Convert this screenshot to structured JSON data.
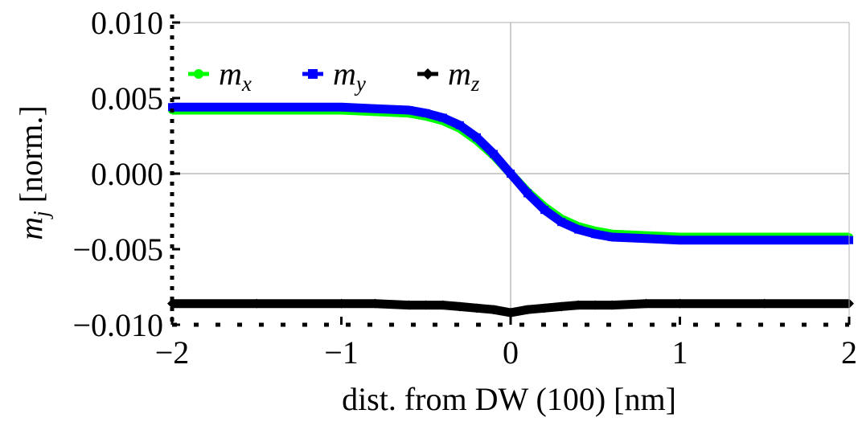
{
  "chart_data": {
    "type": "line",
    "title": "",
    "xlabel": "dist. from DW (100) [nm]",
    "ylabel": {
      "main": "m",
      "sub": "j",
      "suffix": " [norm.]"
    },
    "xlim": [
      -2,
      2
    ],
    "ylim": [
      -0.01,
      0.01
    ],
    "xticks": [
      {
        "value": -2,
        "label": "−2"
      },
      {
        "value": -1,
        "label": "−1"
      },
      {
        "value": 0,
        "label": "0"
      },
      {
        "value": 1,
        "label": "1"
      },
      {
        "value": 2,
        "label": "2"
      }
    ],
    "yticks": [
      {
        "value": 0.01,
        "label": "0.010"
      },
      {
        "value": 0.005,
        "label": "0.005"
      },
      {
        "value": 0,
        "label": "0.000"
      },
      {
        "value": -0.005,
        "label": "−0.005"
      },
      {
        "value": -0.01,
        "label": "−0.010"
      }
    ],
    "grid": "zero-lines",
    "legend_position": "top-left",
    "x": [
      -2.0,
      -1.5,
      -1.0,
      -0.8,
      -0.6,
      -0.5,
      -0.4,
      -0.3,
      -0.2,
      -0.1,
      0.0,
      0.1,
      0.2,
      0.3,
      0.4,
      0.5,
      0.6,
      0.8,
      1.0,
      1.5,
      2.0
    ],
    "series": [
      {
        "name": {
          "main": "m",
          "sub": "x"
        },
        "color": "#00ff00",
        "marker": "circle",
        "values": [
          0.0042,
          0.0042,
          0.0042,
          0.0041,
          0.004,
          0.0038,
          0.0035,
          0.003,
          0.0022,
          0.0012,
          0.0,
          -0.0012,
          -0.0022,
          -0.003,
          -0.0035,
          -0.0038,
          -0.004,
          -0.0041,
          -0.0042,
          -0.0042,
          -0.0042
        ]
      },
      {
        "name": {
          "main": "m",
          "sub": "y"
        },
        "color": "#0000ff",
        "marker": "square",
        "values": [
          0.0044,
          0.0044,
          0.0044,
          0.0043,
          0.0042,
          0.004,
          0.0037,
          0.0032,
          0.0024,
          0.0013,
          0.0,
          -0.0013,
          -0.0024,
          -0.0032,
          -0.0037,
          -0.004,
          -0.0042,
          -0.0043,
          -0.0044,
          -0.0044,
          -0.0044
        ]
      },
      {
        "name": {
          "main": "m",
          "sub": "z"
        },
        "color": "#000000",
        "marker": "diamond",
        "values": [
          -0.0086,
          -0.0086,
          -0.0086,
          -0.0086,
          -0.0087,
          -0.0087,
          -0.0087,
          -0.0088,
          -0.0089,
          -0.009,
          -0.0092,
          -0.009,
          -0.0089,
          -0.0088,
          -0.0087,
          -0.0087,
          -0.0087,
          -0.0086,
          -0.0086,
          -0.0086,
          -0.0086
        ]
      }
    ]
  }
}
